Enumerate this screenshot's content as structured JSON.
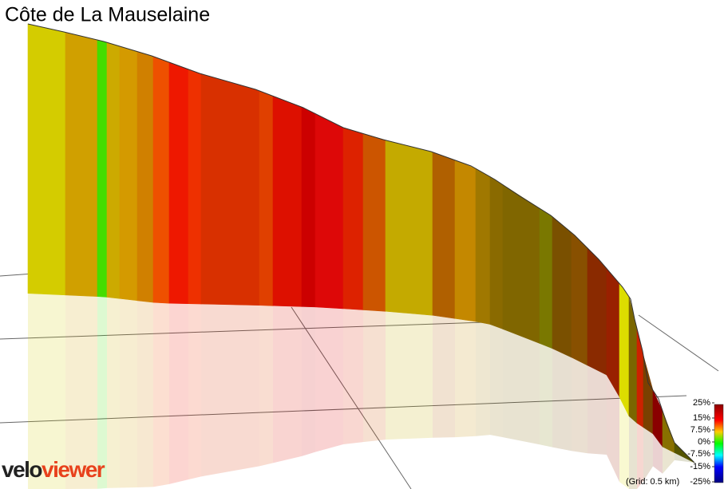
{
  "header": {
    "title": "Côte de La Mauselaine"
  },
  "legend": {
    "ticks": [
      {
        "value": 25,
        "label": "25%"
      },
      {
        "value": 15,
        "label": "15%"
      },
      {
        "value": 7.5,
        "label": "7.5%"
      },
      {
        "value": 0,
        "label": "0%"
      },
      {
        "value": -7.5,
        "label": "-7.5%"
      },
      {
        "value": -15,
        "label": "-15%"
      },
      {
        "value": -25,
        "label": "-25%"
      }
    ],
    "note": "(Grid: 0.5 km)"
  },
  "logo": {
    "part1": "velo",
    "part2": "viewer"
  }
}
